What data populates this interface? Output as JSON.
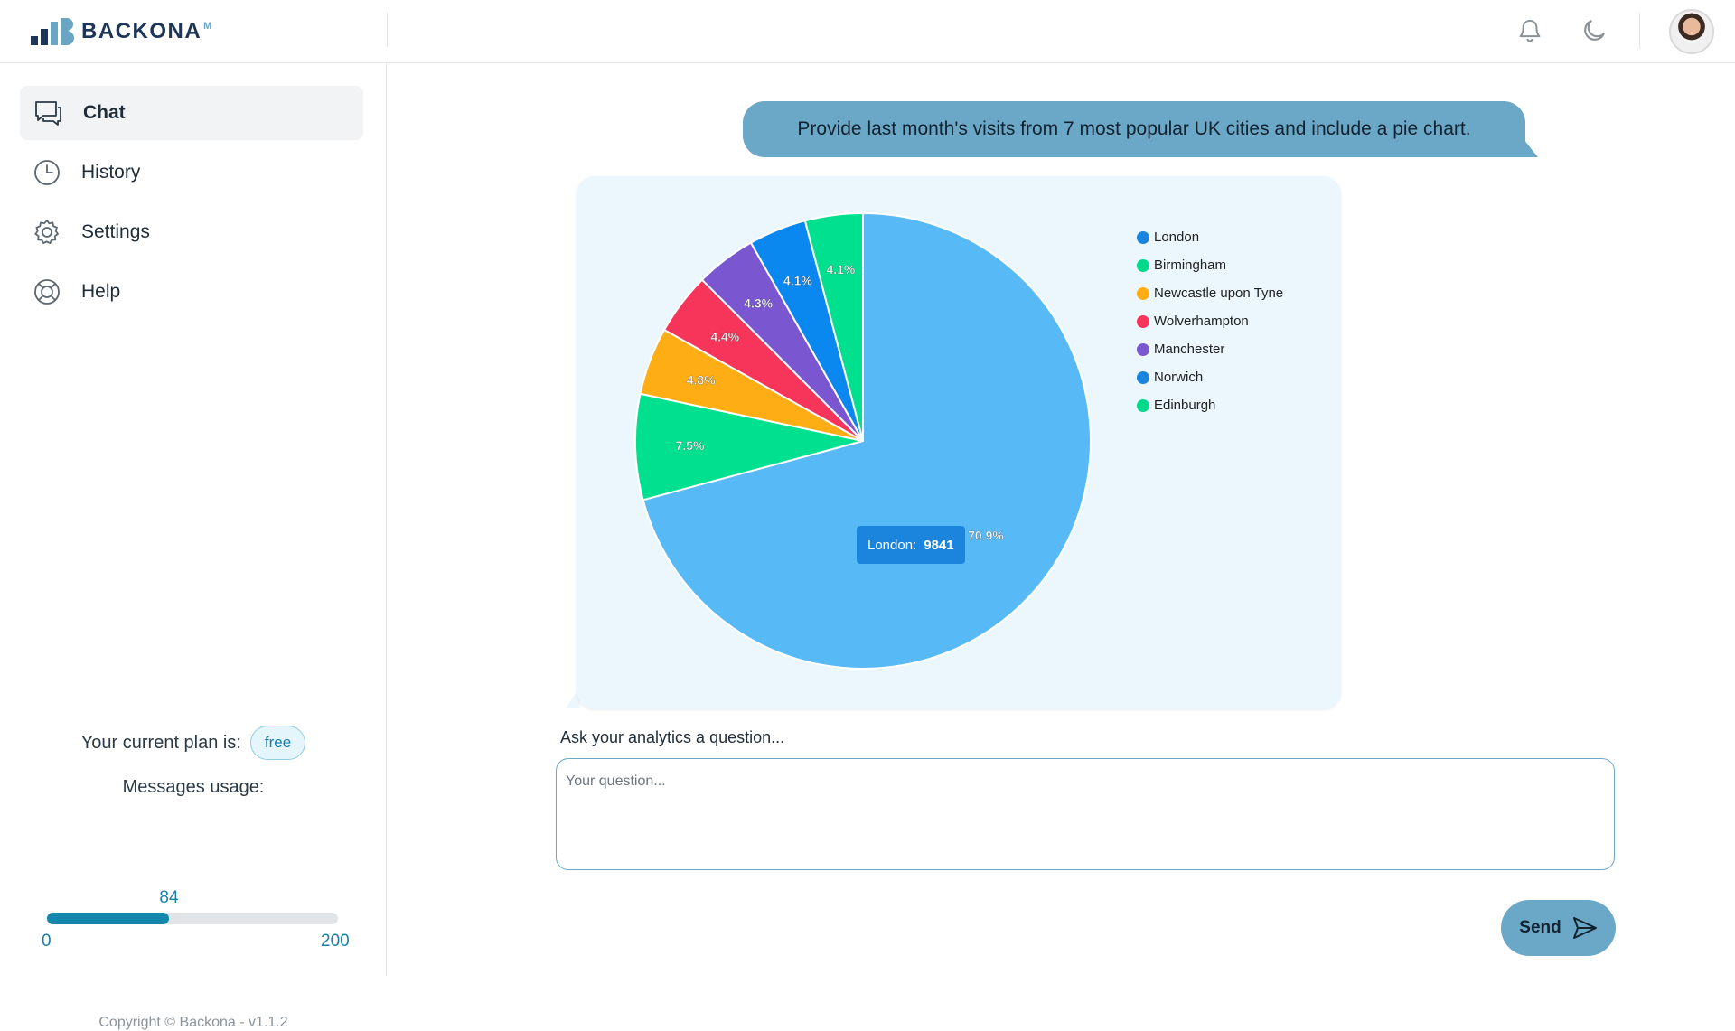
{
  "app": {
    "logo_text": "BACKONA",
    "logo_sup": "M"
  },
  "header": {
    "icons": [
      "bell-icon",
      "moon-icon"
    ],
    "avatar": "user-avatar"
  },
  "sidebar": {
    "items": [
      {
        "label": "Chat",
        "icon": "chat-icon",
        "active": true
      },
      {
        "label": "History",
        "icon": "clock-icon",
        "active": false
      },
      {
        "label": "Settings",
        "icon": "gear-icon",
        "active": false
      },
      {
        "label": "Help",
        "icon": "lifebuoy-icon",
        "active": false
      }
    ],
    "plan_text": "Your current plan is:",
    "plan_badge": "free",
    "usage_title": "Messages usage:",
    "usage": {
      "current": "84",
      "min": "0",
      "max": "200",
      "fraction": 0.42
    },
    "copyright": "Copyright © Backona - v1.1.2"
  },
  "chat": {
    "user_message": "Provide last month's visits from 7 most popular UK cities and include a pie chart.",
    "ask_label": "Ask your analytics a question...",
    "input_placeholder": "Your question...",
    "input_value": "",
    "send_label": "Send"
  },
  "tooltip": {
    "label": "London:",
    "value": "9841"
  },
  "chart_data": {
    "type": "pie",
    "categories": [
      "London",
      "Birmingham",
      "Newcastle upon Tyne",
      "Wolverhampton",
      "Manchester",
      "Norwich",
      "Edinburgh"
    ],
    "values": [
      70.9,
      7.5,
      4.8,
      4.4,
      4.3,
      4.1,
      4.1
    ],
    "labels": [
      "70.9%",
      "7.5%",
      "4.8%",
      "4.4%",
      "4.3%",
      "4.1%",
      "4.1%"
    ],
    "legend_colors": [
      "#1b84dd",
      "#00d98c",
      "#ffad14",
      "#f7345a",
      "#7a57d1",
      "#1b84dd",
      "#00d98c"
    ],
    "slice_colors": [
      "#57baf7",
      "#00e08f",
      "#ffad14",
      "#f7345a",
      "#7a57d1",
      "#0a88f0",
      "#00e08f"
    ],
    "legend_position": "right"
  }
}
